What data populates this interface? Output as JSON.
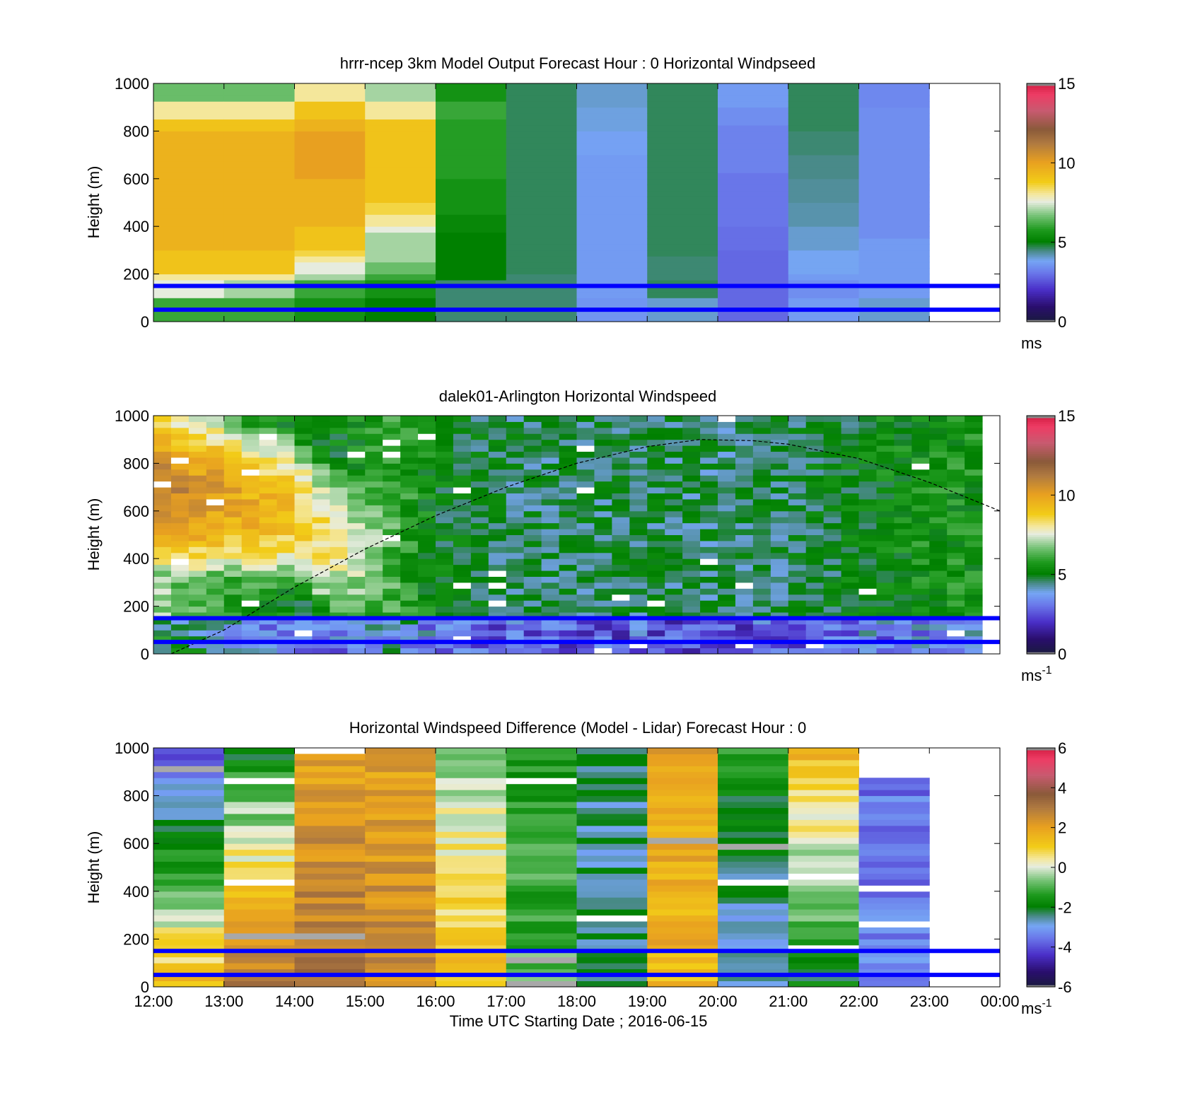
{
  "figure": {
    "xaxis_label": "Time UTC  Starting Date ; 2016-06-15",
    "time_ticks": [
      "12:00",
      "13:00",
      "14:00",
      "15:00",
      "16:00",
      "17:00",
      "18:00",
      "19:00",
      "20:00",
      "21:00",
      "22:00",
      "23:00",
      "00:00"
    ],
    "reference_lines_m": [
      150,
      50
    ],
    "reference_line_color": "#0000ff"
  },
  "chart_data": [
    {
      "type": "heatmap",
      "title": "hrrr-ncep 3km Model Output   Forecast Hour : 0 Horizontal Windpseed",
      "ylabel": "Height (m)",
      "ylim": [
        0,
        1000
      ],
      "yticks": [
        "0",
        "200",
        "400",
        "600",
        "800",
        "1000"
      ],
      "xlim_hours": [
        12,
        24
      ],
      "colorbar": {
        "ticks": [
          "0",
          "5",
          "10",
          "15"
        ],
        "range": [
          0,
          15
        ],
        "unit": "ms",
        "unit_sup": ""
      },
      "cells_x_hours": [
        12,
        13,
        14,
        15,
        16,
        17,
        18,
        19,
        20,
        21,
        22
      ],
      "cells_y_m": [
        0,
        25,
        50,
        75,
        100,
        125,
        150,
        175,
        200,
        225,
        250,
        275,
        300,
        325,
        350,
        375,
        400,
        425,
        450,
        475,
        500,
        525,
        550,
        575,
        600,
        625,
        650,
        675,
        700,
        725,
        750,
        775,
        800,
        825,
        850,
        875,
        900,
        925,
        950,
        975
      ],
      "values_ms": [
        [
          6,
          6,
          6,
          6,
          7.5,
          7.5,
          7.5,
          8,
          9,
          9,
          9,
          9,
          9.5,
          9.5,
          9.5,
          9.5,
          9.5,
          9.5,
          9.5,
          9.5,
          9.5,
          9.5,
          9.5,
          9.5,
          9.5,
          9.5,
          9.5,
          9.5,
          9.5,
          9.5,
          9.5,
          9.5,
          9,
          9,
          8,
          8,
          8,
          6.5,
          6.5,
          6.5
        ],
        [
          6,
          6,
          6,
          6,
          7,
          7,
          7,
          8,
          9,
          9,
          9,
          9,
          9.5,
          9.5,
          9.5,
          9.5,
          9.5,
          9.5,
          9.5,
          9.5,
          9.5,
          9.5,
          9.5,
          9.5,
          9.5,
          9.5,
          9.5,
          9.5,
          9.5,
          9.5,
          9.5,
          9.5,
          9,
          9,
          8,
          8,
          8,
          6.5,
          6.5,
          6.5
        ],
        [
          5.5,
          5.5,
          5.5,
          5.5,
          6,
          6,
          6,
          7,
          7.5,
          7.5,
          8,
          8.5,
          9,
          9,
          9,
          9,
          9.5,
          9.5,
          9.5,
          9.5,
          9.5,
          9.5,
          9.5,
          9.5,
          10,
          10,
          10,
          10,
          10,
          10,
          10,
          10,
          9.5,
          9.5,
          9,
          9,
          9,
          8,
          8,
          8
        ],
        [
          5,
          5,
          5,
          5,
          5.5,
          5.5,
          5.5,
          6,
          6.5,
          6.5,
          7,
          7,
          7,
          7,
          7,
          7.5,
          8,
          8,
          8.5,
          8.5,
          9,
          9,
          9,
          9,
          9,
          9,
          9,
          9,
          9,
          9,
          9,
          9,
          9,
          9,
          8,
          8,
          8,
          7,
          7,
          7
        ],
        [
          4.5,
          4.5,
          4.5,
          4.5,
          4.5,
          4.5,
          4.5,
          5,
          5,
          5,
          5,
          5,
          5,
          5,
          5,
          5.2,
          5.2,
          5.2,
          5.5,
          5.5,
          5.5,
          5.5,
          5.5,
          5.5,
          5.8,
          5.8,
          5.8,
          5.8,
          5.8,
          5.8,
          5.8,
          5.8,
          5.8,
          5.8,
          6,
          6,
          6,
          5.5,
          5.5,
          5.5
        ],
        [
          4.5,
          4.5,
          4.5,
          4.5,
          4.5,
          4.5,
          4.5,
          4.5,
          4.6,
          4.6,
          4.6,
          4.6,
          4.6,
          4.6,
          4.6,
          4.6,
          4.6,
          4.6,
          4.6,
          4.6,
          4.6,
          4.6,
          4.6,
          4.6,
          4.6,
          4.6,
          4.6,
          4.6,
          4.6,
          4.6,
          4.6,
          4.6,
          4.6,
          4.6,
          4.6,
          4.6,
          4.6,
          4.6,
          4.6,
          4.6
        ],
        [
          3.5,
          3.5,
          3.5,
          3.5,
          3.6,
          3.6,
          3.6,
          3.6,
          3.6,
          3.6,
          3.6,
          3.6,
          3.6,
          3.6,
          3.6,
          3.6,
          3.6,
          3.6,
          3.6,
          3.6,
          3.6,
          3.6,
          3.6,
          3.6,
          3.6,
          3.6,
          3.6,
          3.6,
          3.7,
          3.7,
          3.7,
          3.7,
          3.9,
          3.9,
          3.9,
          3.9,
          4,
          4,
          4,
          4
        ],
        [
          4,
          4,
          4,
          4,
          4.6,
          4.6,
          4.6,
          4.5,
          4.5,
          4.5,
          4.5,
          4.6,
          4.6,
          4.6,
          4.6,
          4.6,
          4.6,
          4.6,
          4.6,
          4.6,
          4.6,
          4.6,
          4.6,
          4.6,
          4.6,
          4.6,
          4.6,
          4.6,
          4.6,
          4.6,
          4.6,
          4.6,
          4.6,
          4.6,
          4.6,
          4.6,
          4.6,
          4.6,
          4.6,
          4.6
        ],
        [
          2.8,
          2.8,
          2.8,
          2.8,
          2.8,
          2.8,
          2.8,
          2.8,
          2.8,
          2.8,
          2.8,
          2.8,
          2.9,
          2.9,
          2.9,
          2.9,
          3,
          3,
          3,
          3,
          3,
          3,
          3,
          3,
          3,
          3.2,
          3.2,
          3.2,
          3.2,
          3.2,
          3.2,
          3.2,
          3.2,
          3.4,
          3.4,
          3.4,
          3.6,
          3.6,
          3.6,
          3.6
        ],
        [
          3.6,
          3.6,
          3.6,
          3.6,
          3.4,
          3.4,
          3.4,
          3.6,
          3.8,
          3.8,
          3.8,
          3.8,
          4,
          4,
          4,
          4,
          4.2,
          4.2,
          4.2,
          4.2,
          4.3,
          4.3,
          4.3,
          4.3,
          4.4,
          4.4,
          4.4,
          4.4,
          4.5,
          4.5,
          4.5,
          4.5,
          4.6,
          4.6,
          4.6,
          4.6,
          4.6,
          4.6,
          4.6,
          4.6
        ],
        [
          4,
          4,
          4,
          4,
          3.6,
          3.6,
          3.6,
          3.6,
          3.6,
          3.6,
          3.6,
          3.6,
          3.6,
          3.6,
          3.4,
          3.4,
          3.4,
          3.4,
          3.4,
          3.4,
          3.4,
          3.4,
          3.4,
          3.4,
          3.4,
          3.4,
          3.4,
          3.4,
          3.4,
          3.4,
          3.4,
          3.4,
          3.4,
          3.4,
          3.4,
          3.4,
          3.3,
          3.3,
          3.3,
          3.3
        ]
      ]
    },
    {
      "type": "heatmap",
      "title": "dalek01-Arlington  Horizontal Windspeed",
      "ylabel": "Height (m)",
      "ylim": [
        0,
        1000
      ],
      "yticks": [
        "0",
        "200",
        "400",
        "600",
        "800",
        "1000"
      ],
      "xlim_hours": [
        12,
        24
      ],
      "colorbar": {
        "ticks": [
          "0",
          "5",
          "10",
          "15"
        ],
        "range": [
          0,
          15
        ],
        "unit": "ms",
        "unit_sup": "-1"
      },
      "column_width_hours": 0.25,
      "row_height_m": 25,
      "profile_anchors_hours": [
        12,
        12.5,
        13,
        13.5,
        14,
        14.5,
        15,
        15.5,
        16,
        17,
        18,
        19,
        20,
        21,
        22,
        23,
        23.75
      ],
      "profile_peak_height_m": [
        700,
        650,
        650,
        600,
        600,
        450,
        400,
        400,
        0,
        0,
        0,
        0,
        0,
        0,
        0,
        0,
        0
      ],
      "profile_peak_ms": [
        11,
        10.5,
        10,
        9.5,
        9,
        8,
        7,
        6,
        5,
        4.6,
        4.6,
        4.6,
        4.5,
        4.6,
        5,
        5.5,
        5.5
      ],
      "profile_low_ms": [
        7,
        6.5,
        6,
        5.5,
        5,
        5,
        5.5,
        6,
        5,
        4.6,
        4.6,
        4.6,
        4.5,
        4.6,
        5,
        5.5,
        5.5
      ],
      "boundary_layer_curve": {
        "x_hours": [
          12.25,
          13,
          14,
          15,
          16,
          17,
          18,
          19,
          19.75,
          20.5,
          21,
          22,
          23,
          24
        ],
        "height_m": [
          0,
          100,
          280,
          440,
          580,
          700,
          800,
          870,
          900,
          895,
          880,
          820,
          720,
          600
        ]
      }
    },
    {
      "type": "heatmap",
      "title": "Horizontal Windspeed Difference (Model - Lidar) Forecast Hour : 0",
      "ylabel": "Height (m)",
      "ylim": [
        0,
        1000
      ],
      "yticks": [
        "0",
        "200",
        "400",
        "600",
        "800",
        "1000"
      ],
      "xlim_hours": [
        12,
        24
      ],
      "colorbar": {
        "ticks": [
          "-6",
          "-4",
          "-2",
          "0",
          "2",
          "4",
          "6"
        ],
        "range": [
          -6,
          6
        ],
        "unit": "ms",
        "unit_sup": "-1"
      },
      "cells_x_hours": [
        12,
        13,
        14,
        15,
        16,
        17,
        18,
        19,
        20,
        21,
        22
      ],
      "row_height_m": 25,
      "profile_low_diff": [
        1.5,
        3,
        3,
        2.5,
        1.5,
        -1,
        -2.5,
        1.5,
        -3,
        -2,
        -3.5
      ],
      "profile_high_diff": [
        -4,
        -2,
        2,
        2,
        -0.5,
        -1.5,
        -2.5,
        2,
        -1.5,
        1.5,
        -3.5
      ],
      "profile_top_m": [
        1000,
        1000,
        960,
        1000,
        1000,
        1000,
        1000,
        1000,
        1000,
        1000,
        870
      ]
    }
  ]
}
